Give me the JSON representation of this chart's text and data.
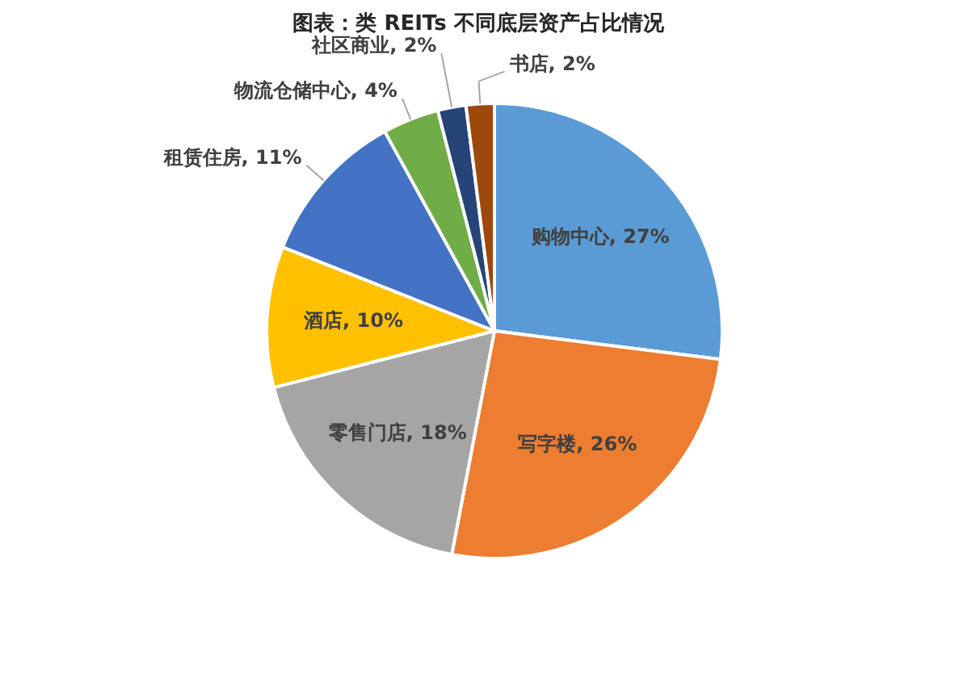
{
  "chart_data": {
    "type": "pie",
    "title": "图表：类 REITs 不同底层资产占比情况",
    "categories": [
      "购物中心",
      "写字楼",
      "零售门店",
      "酒店",
      "租赁住房",
      "物流仓储中心",
      "社区商业",
      "书店"
    ],
    "values": [
      27,
      26,
      18,
      10,
      11,
      4,
      2,
      2
    ],
    "colors": [
      "#5b9bd5",
      "#ed7d31",
      "#a5a5a5",
      "#ffc000",
      "#4472c4",
      "#70ad47",
      "#264478",
      "#9e480e"
    ],
    "value_labels": [
      "27%",
      "26%",
      "18%",
      "10%",
      "11%",
      "4%",
      "2%",
      "2%"
    ],
    "legend": false
  }
}
